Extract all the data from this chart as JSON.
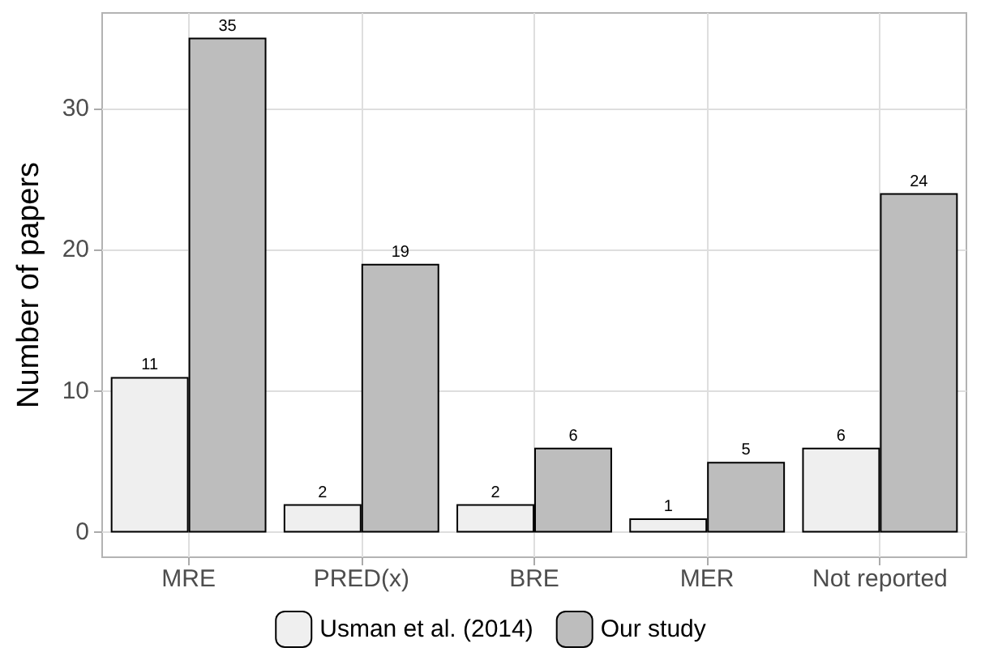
{
  "chart_data": {
    "type": "bar",
    "ylabel": "Number of papers",
    "categories": [
      "MRE",
      "PRED(x)",
      "BRE",
      "MER",
      "Not reported"
    ],
    "series": [
      {
        "name": "Usman et al. (2014)",
        "color": "#efefef",
        "values": [
          11,
          2,
          2,
          1,
          6
        ]
      },
      {
        "name": "Our study",
        "color": "#bdbdbd",
        "values": [
          35,
          19,
          6,
          5,
          24
        ]
      }
    ],
    "ylim": [
      -1.75,
      36.75
    ],
    "yticks": [
      0,
      10,
      20,
      30
    ],
    "grid": true,
    "legend": "bottom",
    "data_labels": true
  }
}
